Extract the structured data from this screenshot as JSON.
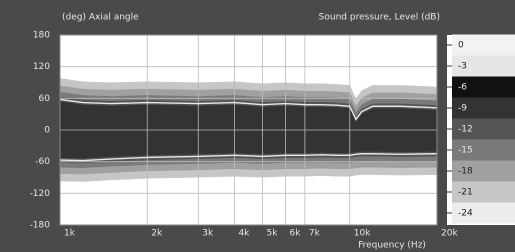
{
  "chart_data": {
    "type": "line",
    "y_label": "(deg) Axial angle",
    "x_label": "Frequency  (Hz)",
    "x": [
      1000,
      1200,
      1500,
      2000,
      3000,
      4000,
      5000,
      6000,
      7000,
      8000,
      9000,
      10000,
      10500,
      11000,
      12000,
      15000,
      20000
    ],
    "series": [
      {
        "color": "#e8e8e8",
        "values": [
          58,
          52,
          50,
          52,
          50,
          52,
          48,
          50,
          48,
          48,
          47,
          45,
          20,
          35,
          45,
          45,
          42
        ]
      },
      {
        "color": "#e8e8e8",
        "values": [
          -57,
          -58,
          -55,
          -52,
          -50,
          -48,
          -50,
          -48,
          -48,
          -47,
          -48,
          -48,
          -46,
          -45,
          -45,
          -46,
          -45
        ]
      }
    ],
    "xlim": [
      1000,
      20000
    ],
    "log_x": true,
    "xticks": [
      {
        "value": 1000,
        "label": "1k"
      },
      {
        "value": 2000,
        "label": "2k"
      },
      {
        "value": 3000,
        "label": "3k"
      },
      {
        "value": 4000,
        "label": "4k"
      },
      {
        "value": 5000,
        "label": "5k"
      },
      {
        "value": 6000,
        "label": "6k"
      },
      {
        "value": 7000,
        "label": "7k"
      },
      {
        "value": 10000,
        "label": "10k"
      },
      {
        "value": 20000,
        "label": "20k"
      }
    ],
    "ylim": [
      -180,
      180
    ],
    "yticks": [
      180,
      120,
      60,
      0,
      -60,
      -120,
      -180
    ],
    "grid": true,
    "colorbar": {
      "label": "Sound pressure, Level (dB)",
      "ticks": [
        0,
        -3,
        -6,
        -9,
        -12,
        -15,
        -18,
        -21,
        -24
      ],
      "colors": [
        "#f2f2f2",
        "#e6e6e6",
        "#111111",
        "#333333",
        "#555555",
        "#7a7a7a",
        "#a0a0a0",
        "#c6c6c6",
        "#ececec"
      ]
    }
  }
}
